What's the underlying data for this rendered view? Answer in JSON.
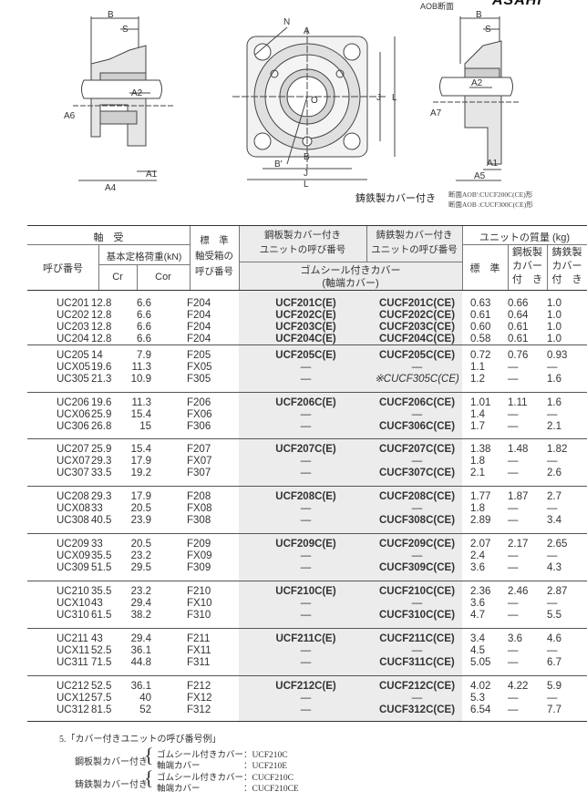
{
  "drawings": {
    "side_left_labels": [
      "B",
      "S",
      "A2",
      "A6",
      "A1",
      "A4"
    ],
    "front_labels": [
      "N",
      "A",
      "O",
      "J",
      "L",
      "B'",
      "B",
      "J",
      "L"
    ],
    "side_right_title": "AOB断面",
    "side_right_labels": [
      "B",
      "S",
      "A2",
      "A7",
      "A1",
      "A5"
    ],
    "logo_text": "ASAHI"
  },
  "caption": {
    "title": "鋳鉄製カバー付き",
    "line1": "断面AOB':CUCF200C(CE)形",
    "line2": "断面AOB :CUCF300C(CE)形"
  },
  "table": {
    "headers": {
      "bearing": "軸　受",
      "bearing_no": "呼び番号",
      "load_rating": "基本定格荷重(kN)",
      "cr": "Cr",
      "cor": "Cor",
      "housing": "標　準\n軸受箱の\n呼び番号",
      "steel_cover": "鋼板製カバー付き\nユニットの呼び番号",
      "cast_cover": "鋳鉄製カバー付き\nユニットの呼び番号",
      "rubber_seal": "ゴムシール付きカバー\n(軸端カバー)",
      "mass": "ユニットの質量 (kg)",
      "mass_std": "標　準",
      "mass_steel": "鋼板製\nカバー\n付　き",
      "mass_cast": "鋳鉄製\nカバー\n付　き"
    },
    "groups": [
      {
        "rows": [
          [
            "UC201",
            "12.8",
            "6.6",
            "F204",
            "UCF201C(E)",
            "CUCF201C(CE)",
            "0.63",
            "0.66",
            "1.0"
          ],
          [
            "UC202",
            "12.8",
            "6.6",
            "F204",
            "UCF202C(E)",
            "CUCF202C(CE)",
            "0.61",
            "0.64",
            "1.0"
          ],
          [
            "UC203",
            "12.8",
            "6.6",
            "F204",
            "UCF203C(E)",
            "CUCF203C(CE)",
            "0.60",
            "0.61",
            "1.0"
          ],
          [
            "UC204",
            "12.8",
            "6.6",
            "F204",
            "UCF204C(E)",
            "CUCF204C(CE)",
            "0.58",
            "0.61",
            "1.0"
          ]
        ]
      },
      {
        "rows": [
          [
            "UC205",
            "14",
            "7.9",
            "F205",
            "UCF205C(E)",
            "CUCF205C(CE)",
            "0.72",
            "0.76",
            "0.93"
          ],
          [
            "UCX05",
            "19.6",
            "11.3",
            "FX05",
            "—",
            "—",
            "1.1",
            "—",
            "—"
          ],
          [
            "UC305",
            "21.3",
            "10.9",
            "F305",
            "—",
            "※CUCF305C(CE)",
            "1.2",
            "—",
            "1.6"
          ]
        ]
      },
      {
        "rows": [
          [
            "UC206",
            "19.6",
            "11.3",
            "F206",
            "UCF206C(E)",
            "CUCF206C(CE)",
            "1.01",
            "1.11",
            "1.6"
          ],
          [
            "UCX06",
            "25.9",
            "15.4",
            "FX06",
            "—",
            "—",
            "1.4",
            "—",
            "—"
          ],
          [
            "UC306",
            "26.8",
            "15",
            "F306",
            "—",
            "CUCF306C(CE)",
            "1.7",
            "—",
            "2.1"
          ]
        ]
      },
      {
        "rows": [
          [
            "UC207",
            "25.9",
            "15.4",
            "F207",
            "UCF207C(E)",
            "CUCF207C(CE)",
            "1.38",
            "1.48",
            "1.82"
          ],
          [
            "UCX07",
            "29.3",
            "17.9",
            "FX07",
            "—",
            "—",
            "1.8",
            "—",
            "—"
          ],
          [
            "UC307",
            "33.5",
            "19.2",
            "F307",
            "—",
            "CUCF307C(CE)",
            "2.1",
            "—",
            "2.6"
          ]
        ]
      },
      {
        "rows": [
          [
            "UC208",
            "29.3",
            "17.9",
            "F208",
            "UCF208C(E)",
            "CUCF208C(CE)",
            "1.77",
            "1.87",
            "2.7"
          ],
          [
            "UCX08",
            "33",
            "20.5",
            "FX08",
            "—",
            "—",
            "1.8",
            "—",
            "—"
          ],
          [
            "UC308",
            "40.5",
            "23.9",
            "F308",
            "—",
            "CUCF308C(CE)",
            "2.89",
            "—",
            "3.4"
          ]
        ]
      },
      {
        "rows": [
          [
            "UC209",
            "33",
            "20.5",
            "F209",
            "UCF209C(E)",
            "CUCF209C(CE)",
            "2.07",
            "2.17",
            "2.65"
          ],
          [
            "UCX09",
            "35.5",
            "23.2",
            "FX09",
            "—",
            "—",
            "2.4",
            "—",
            "—"
          ],
          [
            "UC309",
            "51.5",
            "29.5",
            "F309",
            "—",
            "CUCF309C(CE)",
            "3.6",
            "—",
            "4.3"
          ]
        ]
      },
      {
        "rows": [
          [
            "UC210",
            "35.5",
            "23.2",
            "F210",
            "UCF210C(E)",
            "CUCF210C(CE)",
            "2.36",
            "2.46",
            "2.87"
          ],
          [
            "UCX10",
            "43",
            "29.4",
            "FX10",
            "—",
            "—",
            "3.6",
            "—",
            "—"
          ],
          [
            "UC310",
            "61.5",
            "38.2",
            "F310",
            "—",
            "CUCF310C(CE)",
            "4.7",
            "—",
            "5.5"
          ]
        ]
      },
      {
        "rows": [
          [
            "UC211",
            "43",
            "29.4",
            "F211",
            "UCF211C(E)",
            "CUCF211C(CE)",
            "3.4",
            "3.6",
            "4.6"
          ],
          [
            "UCX11",
            "52.5",
            "36.1",
            "FX11",
            "—",
            "—",
            "4.5",
            "—",
            "—"
          ],
          [
            "UC311",
            "71.5",
            "44.8",
            "F311",
            "—",
            "CUCF311C(CE)",
            "5.05",
            "—",
            "6.7"
          ]
        ]
      },
      {
        "rows": [
          [
            "UC212",
            "52.5",
            "36.1",
            "F212",
            "UCF212C(E)",
            "CUCF212C(CE)",
            "4.02",
            "4.22",
            "5.9"
          ],
          [
            "UCX12",
            "57.5",
            "40",
            "FX12",
            "—",
            "—",
            "5.3",
            "—",
            "—"
          ],
          [
            "UC312",
            "81.5",
            "52",
            "F312",
            "—",
            "CUCF312C(CE)",
            "6.54",
            "—",
            "7.7"
          ]
        ]
      }
    ]
  },
  "footnote": {
    "title": "5.「カバー付きユニットの呼び番号例」",
    "steel_label": "鋼板製カバー付き",
    "steel_items": [
      "ゴムシール付きカバー：UCF210C",
      "軸端カバー　　　　　：UCF210E"
    ],
    "cast_label": "鋳鉄製カバー付き",
    "cast_items": [
      "ゴムシール付きカバー：CUCF210C",
      "軸端カバー　　　　　：CUCF210CE"
    ]
  }
}
